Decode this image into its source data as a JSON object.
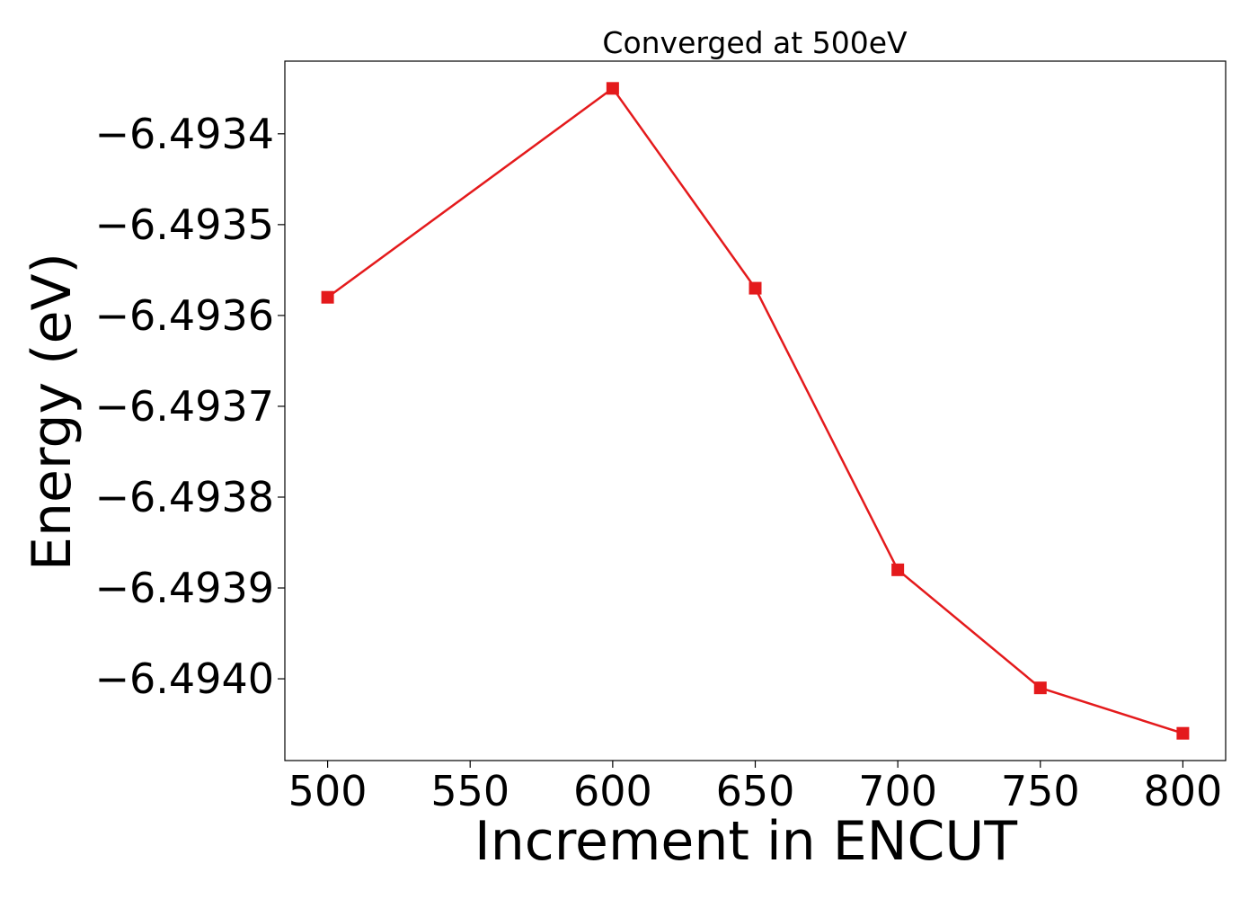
{
  "chart_data": {
    "type": "line",
    "title": "Converged at 500eV",
    "xlabel": "Increment in ENCUT",
    "ylabel": "Energy (eV)",
    "x": [
      500,
      600,
      650,
      700,
      750,
      800
    ],
    "series": [
      {
        "values": [
          -6.49358,
          -6.49335,
          -6.49357,
          -6.49388,
          -6.49401,
          -6.49406
        ],
        "color": "#e41a1c",
        "marker": "square"
      }
    ],
    "xticks": [
      500,
      550,
      600,
      650,
      700,
      750,
      800
    ],
    "xtick_labels": [
      "500",
      "550",
      "600",
      "650",
      "700",
      "750",
      "800"
    ],
    "yticks": [
      -6.4934,
      -6.4935,
      -6.4936,
      -6.4937,
      -6.4938,
      -6.4939,
      -6.494
    ],
    "ytick_labels": [
      "−6.4934",
      "−6.4935",
      "−6.4936",
      "−6.4937",
      "−6.4938",
      "−6.4939",
      "−6.4940"
    ],
    "xlim": [
      485,
      815
    ],
    "ylim": [
      -6.49409,
      -6.49332
    ],
    "grid": false,
    "legend": false
  }
}
